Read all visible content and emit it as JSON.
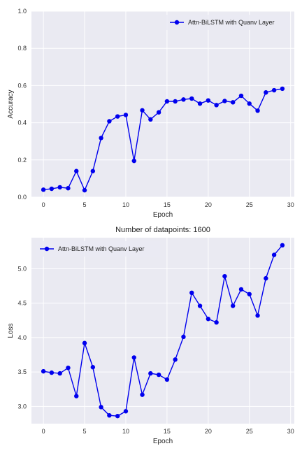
{
  "chart_data": [
    {
      "type": "line",
      "title": "",
      "xlabel": "Epoch",
      "ylabel": "Accuracy",
      "xlim": [
        -1.45,
        30.45
      ],
      "ylim": [
        0,
        1.0
      ],
      "xticks": [
        "0",
        "5",
        "10",
        "15",
        "20",
        "25",
        "30"
      ],
      "yticks": [
        "0.0",
        "0.2",
        "0.4",
        "0.6",
        "0.8",
        "1.0"
      ],
      "grid": true,
      "legend_position": "top-right",
      "series": [
        {
          "name": "Attn-BiLSTM with Quanv Layer",
          "color": "#0000ee",
          "x": [
            0,
            1,
            2,
            3,
            4,
            5,
            6,
            7,
            8,
            9,
            10,
            11,
            12,
            13,
            14,
            15,
            16,
            17,
            18,
            19,
            20,
            21,
            22,
            23,
            24,
            25,
            26,
            27,
            28,
            29
          ],
          "values": [
            0.04,
            0.045,
            0.053,
            0.048,
            0.14,
            0.037,
            0.14,
            0.318,
            0.408,
            0.434,
            0.442,
            0.195,
            0.467,
            0.418,
            0.456,
            0.515,
            0.515,
            0.525,
            0.53,
            0.503,
            0.52,
            0.495,
            0.517,
            0.51,
            0.545,
            0.503,
            0.465,
            0.563,
            0.575,
            0.583
          ]
        }
      ]
    },
    {
      "type": "line",
      "title": "Number of datapoints: 1600",
      "xlabel": "Epoch",
      "ylabel": "Loss",
      "xlim": [
        -1.45,
        30.45
      ],
      "ylim": [
        2.75,
        5.45
      ],
      "xticks": [
        "0",
        "5",
        "10",
        "15",
        "20",
        "25",
        "30"
      ],
      "yticks": [
        "3.0",
        "3.5",
        "4.0",
        "4.5",
        "5.0"
      ],
      "grid": true,
      "legend_position": "top-left",
      "series": [
        {
          "name": "Attn-BiLSTM with Quanv Layer",
          "color": "#0000ee",
          "x": [
            0,
            1,
            2,
            3,
            4,
            5,
            6,
            7,
            8,
            9,
            10,
            11,
            12,
            13,
            14,
            15,
            16,
            17,
            18,
            19,
            20,
            21,
            22,
            23,
            24,
            25,
            26,
            27,
            28,
            29
          ],
          "values": [
            3.51,
            3.49,
            3.48,
            3.56,
            3.15,
            3.92,
            3.57,
            2.99,
            2.87,
            2.86,
            2.93,
            3.71,
            3.17,
            3.48,
            3.46,
            3.39,
            3.68,
            4.01,
            4.65,
            4.46,
            4.27,
            4.22,
            4.89,
            4.46,
            4.7,
            4.63,
            4.32,
            4.86,
            5.2,
            5.34
          ]
        }
      ]
    }
  ]
}
